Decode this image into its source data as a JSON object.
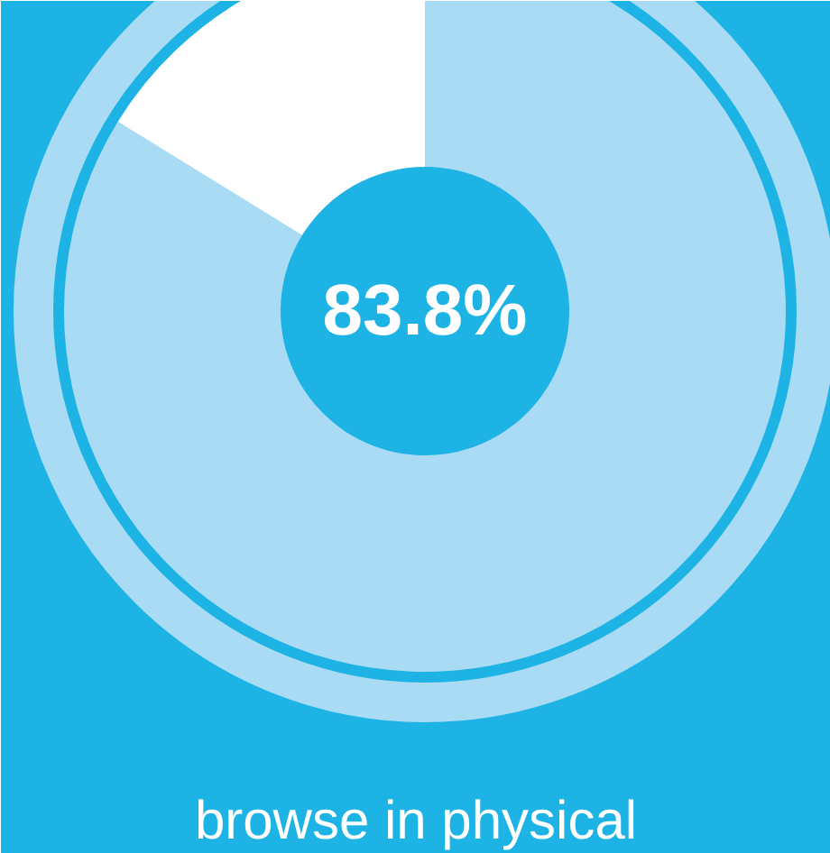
{
  "chart_data": {
    "type": "donut",
    "title": "browse in physical",
    "categories": [
      null,
      null
    ],
    "values": [
      83.8,
      16.2
    ],
    "colors": [
      "#a9dbf4",
      "#ffffff"
    ],
    "annotations": [
      "83.8%"
    ]
  }
}
